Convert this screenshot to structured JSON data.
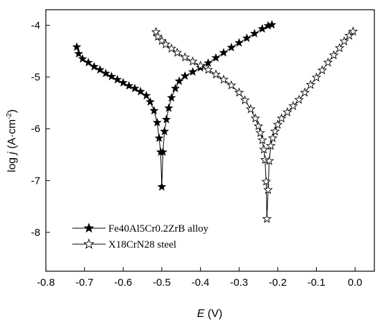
{
  "chart_data": {
    "type": "line",
    "xlabel": {
      "symbol": "E",
      "unit": " (V)"
    },
    "ylabel": {
      "prefix": "log ",
      "symbol": "j",
      "unit_open": " (A·cm",
      "unit_exp": "-2",
      "unit_close": ")"
    },
    "xlim": [
      -0.8,
      0.05
    ],
    "ylim": [
      -8.75,
      -3.7
    ],
    "xticks": [
      -0.8,
      -0.7,
      -0.6,
      -0.5,
      -0.4,
      -0.3,
      -0.2,
      -0.1,
      0.0
    ],
    "xtick_labels": [
      "-0.8",
      "-0.7",
      "-0.6",
      "-0.5",
      "-0.4",
      "-0.3",
      "-0.2",
      "-0.1",
      "0.0"
    ],
    "yticks": [
      -8,
      -7,
      -6,
      -5,
      -4
    ],
    "ytick_labels": [
      "-8",
      "-7",
      "-6",
      "-5",
      "-4"
    ],
    "grid": false,
    "legend_position": "bottom-left",
    "series": [
      {
        "name": "Fe40Al5Cr0.2ZrB alloy",
        "marker": "filled-star",
        "color": "#000000",
        "points": [
          [
            -0.72,
            -4.42
          ],
          [
            -0.715,
            -4.55
          ],
          [
            -0.705,
            -4.65
          ],
          [
            -0.69,
            -4.72
          ],
          [
            -0.675,
            -4.8
          ],
          [
            -0.66,
            -4.86
          ],
          [
            -0.645,
            -4.93
          ],
          [
            -0.63,
            -4.99
          ],
          [
            -0.615,
            -5.05
          ],
          [
            -0.6,
            -5.11
          ],
          [
            -0.585,
            -5.17
          ],
          [
            -0.57,
            -5.22
          ],
          [
            -0.555,
            -5.28
          ],
          [
            -0.54,
            -5.36
          ],
          [
            -0.53,
            -5.48
          ],
          [
            -0.52,
            -5.65
          ],
          [
            -0.512,
            -5.88
          ],
          [
            -0.507,
            -6.18
          ],
          [
            -0.503,
            -6.45
          ],
          [
            -0.5,
            -7.12
          ],
          [
            -0.497,
            -6.45
          ],
          [
            -0.493,
            -6.05
          ],
          [
            -0.488,
            -5.82
          ],
          [
            -0.482,
            -5.6
          ],
          [
            -0.475,
            -5.4
          ],
          [
            -0.465,
            -5.22
          ],
          [
            -0.455,
            -5.08
          ],
          [
            -0.44,
            -4.98
          ],
          [
            -0.42,
            -4.9
          ],
          [
            -0.4,
            -4.82
          ],
          [
            -0.38,
            -4.73
          ],
          [
            -0.36,
            -4.63
          ],
          [
            -0.34,
            -4.53
          ],
          [
            -0.32,
            -4.43
          ],
          [
            -0.3,
            -4.34
          ],
          [
            -0.28,
            -4.25
          ],
          [
            -0.26,
            -4.16
          ],
          [
            -0.24,
            -4.07
          ],
          [
            -0.225,
            -4.01
          ],
          [
            -0.215,
            -3.99
          ]
        ]
      },
      {
        "name": "X18CrN28 steel",
        "marker": "open-star",
        "color": "#000000",
        "points": [
          [
            -0.515,
            -4.13
          ],
          [
            -0.51,
            -4.22
          ],
          [
            -0.5,
            -4.3
          ],
          [
            -0.49,
            -4.37
          ],
          [
            -0.475,
            -4.45
          ],
          [
            -0.46,
            -4.53
          ],
          [
            -0.44,
            -4.62
          ],
          [
            -0.42,
            -4.7
          ],
          [
            -0.4,
            -4.78
          ],
          [
            -0.38,
            -4.86
          ],
          [
            -0.36,
            -4.95
          ],
          [
            -0.34,
            -5.05
          ],
          [
            -0.32,
            -5.16
          ],
          [
            -0.3,
            -5.3
          ],
          [
            -0.285,
            -5.45
          ],
          [
            -0.27,
            -5.62
          ],
          [
            -0.258,
            -5.8
          ],
          [
            -0.25,
            -5.95
          ],
          [
            -0.245,
            -6.08
          ],
          [
            -0.24,
            -6.22
          ],
          [
            -0.236,
            -6.4
          ],
          [
            -0.233,
            -6.6
          ],
          [
            -0.23,
            -7.02
          ],
          [
            -0.228,
            -7.74
          ],
          [
            -0.225,
            -7.18
          ],
          [
            -0.222,
            -6.62
          ],
          [
            -0.218,
            -6.33
          ],
          [
            -0.213,
            -6.18
          ],
          [
            -0.207,
            -6.05
          ],
          [
            -0.2,
            -5.92
          ],
          [
            -0.19,
            -5.8
          ],
          [
            -0.175,
            -5.68
          ],
          [
            -0.16,
            -5.56
          ],
          [
            -0.145,
            -5.44
          ],
          [
            -0.13,
            -5.3
          ],
          [
            -0.115,
            -5.15
          ],
          [
            -0.1,
            -5.01
          ],
          [
            -0.085,
            -4.87
          ],
          [
            -0.07,
            -4.72
          ],
          [
            -0.055,
            -4.58
          ],
          [
            -0.04,
            -4.44
          ],
          [
            -0.028,
            -4.31
          ],
          [
            -0.015,
            -4.2
          ],
          [
            -0.005,
            -4.12
          ]
        ]
      }
    ]
  }
}
